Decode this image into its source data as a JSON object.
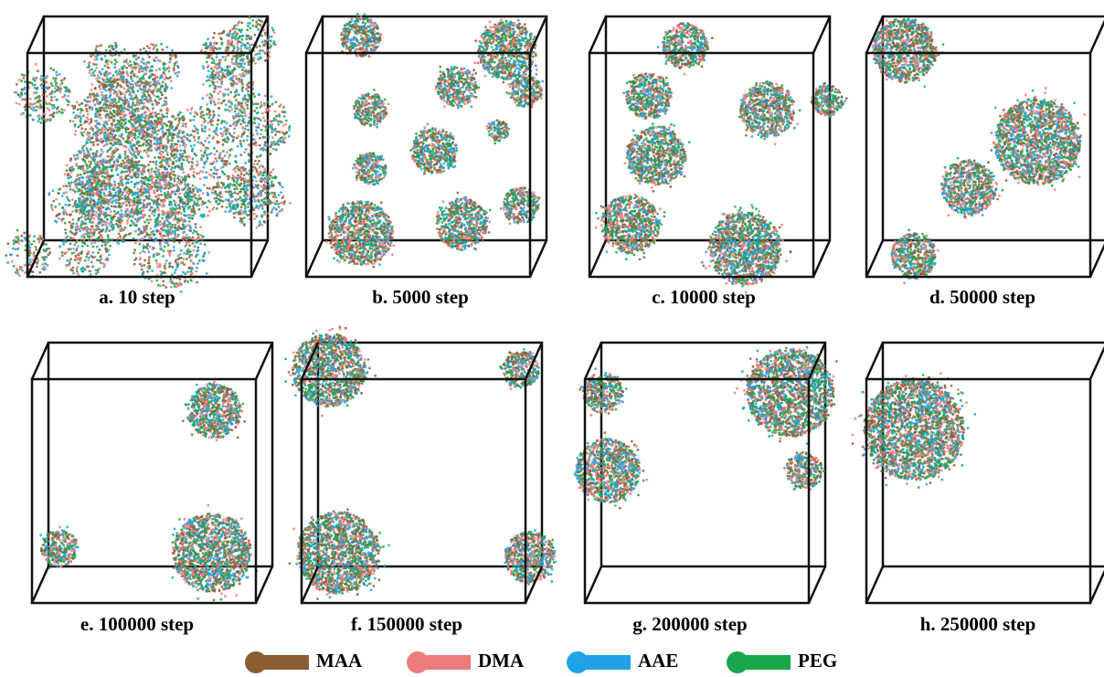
{
  "panels": [
    {
      "label": "a. 10 step"
    },
    {
      "label": "b. 5000 step"
    },
    {
      "label": "c. 10000 step"
    },
    {
      "label": "d. 50000 step"
    },
    {
      "label": "e. 100000 step"
    },
    {
      "label": "f. 150000 step"
    },
    {
      "label": "g. 200000 step"
    },
    {
      "label": "h. 250000 step"
    }
  ],
  "legend": [
    {
      "name": "MAA",
      "color": "#8b5e34"
    },
    {
      "name": "DMA",
      "color": "#ee7b7b"
    },
    {
      "name": "AAE",
      "color": "#1fa2e8"
    },
    {
      "name": "PEG",
      "color": "#1aa64a"
    }
  ]
}
